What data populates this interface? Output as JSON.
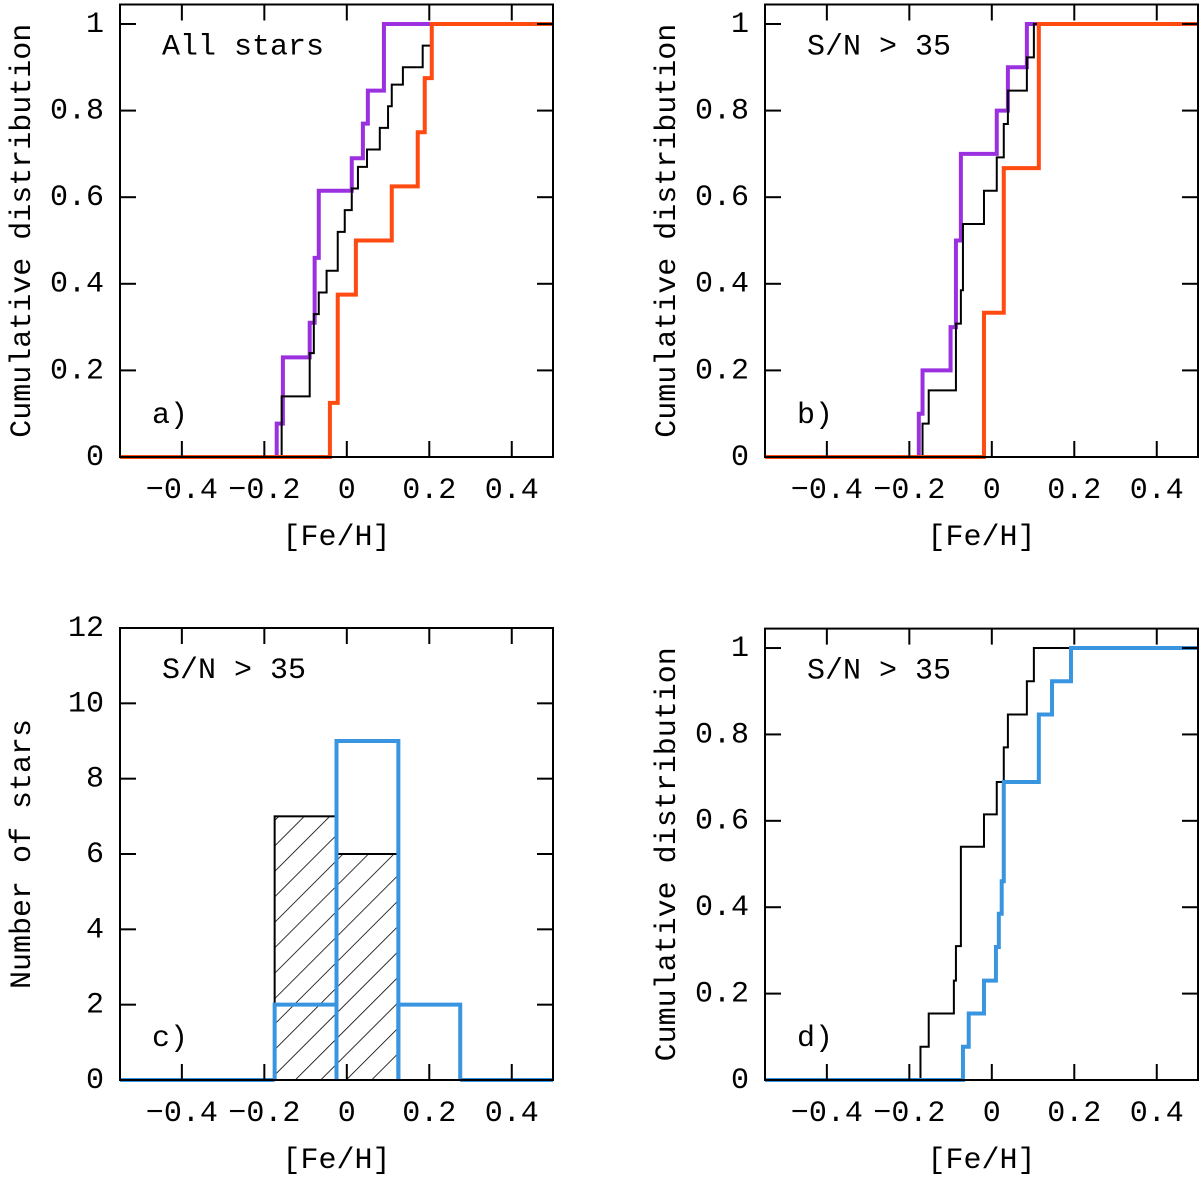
{
  "chart_data": [
    {
      "type": "step",
      "xlabel": "[Fe/H]",
      "ylabel": "Cumulative distribution",
      "annotations": [
        "All stars",
        "a)"
      ],
      "xlim": [
        -0.55,
        0.5
      ],
      "ylim": [
        0,
        1.045
      ],
      "xticks": [
        {
          "value": -0.4,
          "label": "−0.4"
        },
        {
          "value": -0.2,
          "label": "−0.2"
        },
        0,
        0.2,
        0.4
      ],
      "yticks": [
        0,
        0.2,
        0.4,
        0.6,
        0.8,
        1
      ],
      "series": [
        {
          "color": "#9b30e0",
          "x": [
            -0.17,
            -0.155,
            -0.09,
            -0.078,
            -0.068,
            0.012,
            0.039,
            0.051,
            0.09
          ],
          "values": [
            0.077,
            0.23,
            0.31,
            0.46,
            0.615,
            0.69,
            0.77,
            0.846,
            1
          ]
        },
        {
          "color": "#000000",
          "x": [
            -0.158,
            -0.09,
            -0.08,
            -0.068,
            -0.049,
            -0.022,
            -0.005,
            0.012,
            0.027,
            0.049,
            0.08,
            0.1,
            0.109,
            0.136,
            0.184,
            0.206
          ],
          "values": [
            0.14,
            0.24,
            0.33,
            0.38,
            0.43,
            0.52,
            0.57,
            0.62,
            0.67,
            0.71,
            0.76,
            0.81,
            0.86,
            0.9,
            0.95,
            1
          ]
        },
        {
          "color": "#ff4a12",
          "x": [
            -0.041,
            -0.022,
            0.022,
            0.109,
            0.172,
            0.189,
            0.206
          ],
          "values": [
            0.125,
            0.375,
            0.5,
            0.625,
            0.75,
            0.875,
            1
          ]
        }
      ]
    },
    {
      "type": "step",
      "xlabel": "[Fe/H]",
      "ylabel": "Cumulative distribution",
      "annotations": [
        "S/N > 35",
        "b)"
      ],
      "xlim": [
        -0.55,
        0.5
      ],
      "ylim": [
        0,
        1.045
      ],
      "xticks": [
        {
          "value": -0.4,
          "label": "−0.4"
        },
        {
          "value": -0.2,
          "label": "−0.2"
        },
        0,
        0.2,
        0.4
      ],
      "yticks": [
        0,
        0.2,
        0.4,
        0.6,
        0.8,
        1
      ],
      "series": [
        {
          "color": "#9b30e0",
          "x": [
            -0.177,
            -0.168,
            -0.1,
            -0.087,
            -0.075,
            0.012,
            0.039,
            0.085
          ],
          "values": [
            0.1,
            0.2,
            0.3,
            0.5,
            0.7,
            0.8,
            0.9,
            1
          ]
        },
        {
          "color": "#000000",
          "x": [
            -0.168,
            -0.153,
            -0.087,
            -0.075,
            -0.07,
            -0.019,
            0.012,
            0.029,
            0.039,
            0.085,
            0.102
          ],
          "values": [
            0.077,
            0.154,
            0.308,
            0.385,
            0.538,
            0.615,
            0.692,
            0.769,
            0.846,
            0.923,
            1
          ]
        },
        {
          "color": "#ff4a12",
          "x": [
            -0.019,
            0.029,
            0.114
          ],
          "values": [
            0.333,
            0.667,
            1
          ]
        }
      ]
    },
    {
      "type": "histogram",
      "xlabel": "[Fe/H]",
      "ylabel": "Number of stars",
      "annotations": [
        "S/N > 35",
        "c)"
      ],
      "xlim": [
        -0.55,
        0.5
      ],
      "ylim": [
        0,
        12
      ],
      "xticks": [
        {
          "value": -0.4,
          "label": "−0.4"
        },
        {
          "value": -0.2,
          "label": "−0.2"
        },
        0,
        0.2,
        0.4
      ],
      "yticks": [
        0,
        2,
        4,
        6,
        8,
        10,
        12
      ],
      "series": [
        {
          "color": "#000000",
          "hatch": true,
          "bins": [
            -0.175,
            -0.025,
            0.125
          ],
          "values": [
            7,
            6
          ]
        },
        {
          "color": "#3a95e0",
          "hatch": false,
          "bins": [
            -0.175,
            -0.025,
            0.125,
            0.275
          ],
          "values": [
            2,
            9,
            2
          ]
        }
      ]
    },
    {
      "type": "step",
      "xlabel": "[Fe/H]",
      "ylabel": "Cumulative distribution",
      "annotations": [
        "S/N > 35",
        "d)"
      ],
      "xlim": [
        -0.55,
        0.5
      ],
      "ylim": [
        0,
        1.045
      ],
      "xticks": [
        {
          "value": -0.4,
          "label": "−0.4"
        },
        {
          "value": -0.2,
          "label": "−0.2"
        },
        0,
        0.2,
        0.4
      ],
      "yticks": [
        0,
        0.2,
        0.4,
        0.6,
        0.8,
        1
      ],
      "series": [
        {
          "color": "#000000",
          "x": [
            -0.173,
            -0.153,
            -0.092,
            -0.087,
            -0.075,
            -0.019,
            0.012,
            0.029,
            0.039,
            0.085,
            0.102
          ],
          "values": [
            0.077,
            0.154,
            0.23,
            0.31,
            0.54,
            0.615,
            0.69,
            0.77,
            0.846,
            0.923,
            1
          ]
        },
        {
          "color": "#3a95e0",
          "x": [
            -0.07,
            -0.056,
            -0.019,
            0.01,
            0.017,
            0.024,
            0.029,
            0.114,
            0.146,
            0.192
          ],
          "values": [
            0.077,
            0.154,
            0.23,
            0.308,
            0.385,
            0.46,
            0.69,
            0.846,
            0.923,
            1
          ]
        }
      ]
    }
  ]
}
